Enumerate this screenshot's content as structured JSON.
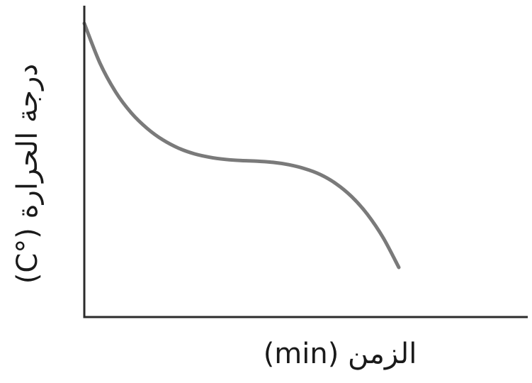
{
  "chart_data": {
    "type": "line",
    "title": "",
    "xlabel": "الزمن (min)",
    "ylabel": "درجة الحرارة (°C)",
    "grid": false,
    "legend": "none",
    "xlim": [
      0,
      100
    ],
    "ylim": [
      0,
      100
    ],
    "series": [
      {
        "color": "#7a7a7a",
        "x": [
          0,
          5,
          10,
          15,
          20,
          25,
          30,
          35,
          40,
          45,
          50,
          55,
          60,
          65,
          70,
          75,
          80,
          85,
          90,
          95,
          100
        ],
        "y": [
          100,
          86.5,
          76.7,
          69.6,
          64.4,
          60.5,
          57.7,
          55.8,
          54.6,
          53.9,
          53.5,
          53.3,
          52.9,
          52.1,
          50.8,
          48.8,
          45.7,
          41.3,
          35.3,
          27.4,
          17.3
        ]
      }
    ],
    "colors": {
      "axis": "#2b2b2b",
      "line": "#7a7a7a",
      "text": "#1a1a1a"
    }
  }
}
